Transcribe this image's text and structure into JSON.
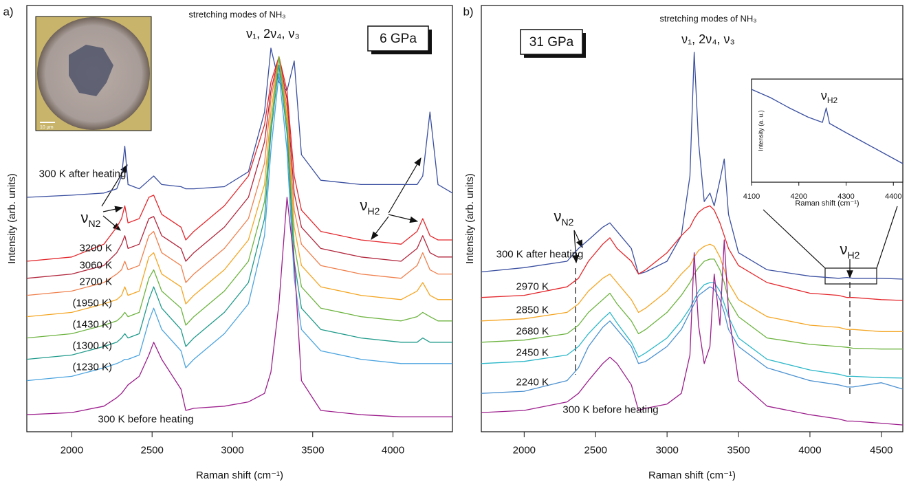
{
  "chart_data": [
    {
      "type": "line",
      "panel_label": "a)",
      "title": "stretching modes of NH₃",
      "subtitle": "ν₁, 2ν₄, ν₃",
      "pressure": "6 GPa",
      "x_label": "Raman shift (cm⁻¹)",
      "y_label": "Intensity (arb. units)",
      "inset_image_scale": "10 µm",
      "xlim": [
        1720,
        4370
      ],
      "xticks": [
        2000,
        2500,
        3000,
        3500,
        4000
      ],
      "ylim": [
        0,
        100
      ],
      "annotations": [
        {
          "text": "ν",
          "sub": "N2"
        },
        {
          "text": "ν",
          "sub": "H2"
        }
      ],
      "x": [
        1720,
        2000,
        2200,
        2280,
        2310,
        2330,
        2350,
        2420,
        2480,
        2510,
        2560,
        2680,
        2710,
        2760,
        2950,
        3100,
        3200,
        3240,
        3290,
        3340,
        3385,
        3430,
        3550,
        3800,
        4050,
        4150,
        4185,
        4230,
        4280,
        4370
      ],
      "series": [
        {
          "name": "300 K after heating",
          "color": "#3a4fa0",
          "values": [
            55,
            55.5,
            56,
            57,
            60,
            67,
            58,
            57,
            59,
            60,
            58,
            57.5,
            57,
            57,
            57.5,
            61,
            75,
            90,
            82,
            80,
            87,
            65,
            59,
            58,
            58,
            58,
            60,
            75,
            58,
            56
          ]
        },
        {
          "name": "3200 K",
          "color": "#e3262b",
          "values": [
            40,
            41,
            44,
            48,
            50,
            53,
            49,
            50,
            55,
            55.5,
            51,
            48,
            45,
            47,
            53,
            60,
            72,
            82,
            88,
            80,
            60,
            52,
            47,
            45,
            44,
            47,
            50,
            46,
            45,
            45
          ]
        },
        {
          "name": "3060 K",
          "color": "#b1263c",
          "values": [
            36,
            37,
            39,
            42,
            44,
            46,
            43,
            44,
            50,
            50.5,
            46,
            43,
            40,
            42,
            48,
            55,
            68,
            80,
            88,
            78,
            56,
            48,
            43,
            41,
            40,
            43,
            46,
            42,
            41,
            41
          ]
        },
        {
          "name": "2700 K",
          "color": "#ef7f4c",
          "values": [
            32,
            33,
            35,
            37,
            38,
            40,
            38,
            39,
            46,
            47,
            42,
            39,
            35,
            37,
            43,
            50,
            63,
            78,
            88,
            76,
            52,
            44,
            39,
            37,
            36,
            39,
            42,
            38,
            37,
            37
          ]
        },
        {
          "name": "(1950 K)",
          "color": "#f4a522",
          "values": [
            27,
            28,
            30,
            31,
            32,
            34,
            32,
            33,
            41,
            42,
            37,
            34,
            30,
            32,
            38,
            45,
            58,
            75,
            88,
            74,
            48,
            39,
            34,
            32,
            31,
            33,
            35,
            32,
            31,
            31
          ]
        },
        {
          "name": "(1430 K)",
          "color": "#6cb33f",
          "values": [
            22,
            23,
            25,
            26,
            27,
            28,
            27,
            28,
            36,
            38,
            33,
            29,
            25,
            27,
            33,
            40,
            54,
            72,
            88,
            72,
            44,
            34,
            29,
            27,
            26,
            27,
            28,
            27,
            26,
            26
          ]
        },
        {
          "name": "(1300 K)",
          "color": "#1e9a8a",
          "values": [
            17,
            18,
            20,
            21,
            22,
            23,
            22,
            23,
            31,
            34,
            29,
            24,
            20,
            22,
            28,
            35,
            50,
            70,
            86,
            70,
            40,
            29,
            24,
            22,
            21,
            21,
            22,
            21,
            21,
            21
          ]
        },
        {
          "name": "(1230 K)",
          "color": "#4aa3df",
          "values": [
            12,
            13,
            15,
            16,
            16.5,
            17,
            17,
            18,
            26,
            29,
            24,
            19,
            15,
            17,
            23,
            30,
            46,
            66,
            84,
            66,
            36,
            24,
            19,
            17,
            16,
            16,
            16,
            16,
            16,
            16
          ]
        },
        {
          "name": "300 K before heating",
          "color": "#9c1e8c",
          "values": [
            4,
            4.5,
            6,
            8,
            9,
            10,
            11,
            13,
            18,
            21,
            17,
            10,
            5,
            5.5,
            6,
            7,
            9,
            14,
            30,
            55,
            40,
            12,
            5,
            4,
            3.5,
            3.5,
            3.5,
            3.5,
            3.5,
            3.5
          ]
        }
      ]
    },
    {
      "type": "line",
      "panel_label": "b)",
      "title": "stretching modes of NH₃",
      "subtitle": "ν₁, 2ν₄, ν₃",
      "pressure": "31 GPa",
      "x_label": "Raman shift (cm⁻¹)",
      "y_label": "Intensity (arb. units)",
      "xlim": [
        1700,
        4650
      ],
      "xticks": [
        2000,
        2500,
        3000,
        3500,
        4000,
        4500
      ],
      "ylim": [
        0,
        100
      ],
      "annotations": [
        {
          "text": "ν",
          "sub": "N2"
        },
        {
          "text": "ν",
          "sub": "H2"
        }
      ],
      "x": [
        1700,
        2000,
        2300,
        2380,
        2450,
        2550,
        2600,
        2650,
        2750,
        2800,
        2850,
        3000,
        3100,
        3160,
        3190,
        3220,
        3260,
        3300,
        3330,
        3370,
        3400,
        3430,
        3500,
        3700,
        4000,
        4200,
        4260,
        4300,
        4500,
        4650
      ],
      "series": [
        {
          "name": "300 K after heating",
          "color": "#3a4fa0",
          "values": [
            37.5,
            38.5,
            40,
            43,
            45,
            48,
            49,
            47,
            43,
            37,
            37.5,
            40,
            46,
            60,
            89,
            68,
            54,
            56,
            53,
            59,
            64,
            51,
            42,
            38,
            36.5,
            36,
            36.2,
            36,
            36,
            35.8
          ]
        },
        {
          "name": "2970 K",
          "color": "#e3262b",
          "values": [
            31.5,
            32,
            34,
            36,
            40,
            44,
            45.5,
            43,
            40,
            37,
            38,
            42,
            46,
            48,
            50,
            51.5,
            52.5,
            53,
            52,
            49,
            46,
            43,
            39,
            35,
            32.5,
            32,
            31.5,
            31.5,
            31,
            30.8
          ]
        },
        {
          "name": "2850 K",
          "color": "#f4a522",
          "values": [
            26,
            26.5,
            28,
            30,
            33,
            36,
            37,
            35,
            31,
            28,
            29,
            33,
            37,
            39,
            41,
            42.5,
            43.5,
            44,
            43.5,
            41,
            38,
            35,
            31,
            27,
            25,
            24.5,
            24,
            24,
            23.5,
            23.5
          ]
        },
        {
          "name": "2680 K",
          "color": "#6cb33f",
          "values": [
            21,
            21.5,
            23,
            25,
            28,
            31,
            32.5,
            30,
            26,
            23,
            24,
            28,
            32,
            35,
            37,
            38.5,
            40,
            40.5,
            40.5,
            38,
            35,
            31,
            27,
            22,
            20.5,
            20,
            19.8,
            19.6,
            19.4,
            19.4
          ]
        },
        {
          "name": "2450 K",
          "color": "#2bb7c8",
          "values": [
            16,
            16.5,
            18,
            20,
            23,
            26.5,
            28,
            25.5,
            21,
            17.5,
            18.5,
            22,
            26,
            29,
            31,
            33,
            34.5,
            35,
            35,
            33,
            30,
            27,
            22,
            17,
            14.5,
            13.5,
            13,
            13,
            12.7,
            12.6
          ]
        },
        {
          "name": "2240 K",
          "color": "#4a90d0",
          "values": [
            9,
            9.5,
            12,
            15,
            20,
            24.5,
            26,
            24,
            20,
            16,
            16.5,
            20,
            24,
            28,
            30,
            32,
            33,
            34,
            33.5,
            31,
            28,
            24,
            20,
            15,
            12,
            11,
            10.5,
            10.5,
            11.5,
            10
          ]
        },
        {
          "name": "300 K before heating",
          "color": "#9c1e8c",
          "values": [
            4.5,
            5,
            7,
            9,
            12,
            16,
            17.5,
            16,
            11,
            5,
            5.5,
            6.5,
            9,
            18,
            42,
            25,
            16,
            20,
            37,
            25,
            45,
            28,
            12,
            6,
            4,
            3,
            2.5,
            2.5,
            2,
            1.6
          ]
        }
      ]
    },
    {
      "type": "line",
      "x_label": "Raman shift (cm⁻¹)",
      "y_label": "Intensity (a. u.)",
      "annotations": [
        {
          "text": "ν",
          "sub": "H2"
        }
      ],
      "xlim": [
        4100,
        4420
      ],
      "xticks": [
        4100,
        4200,
        4300,
        4400
      ],
      "ylim": [
        0,
        100
      ],
      "x": [
        4100,
        4140,
        4180,
        4220,
        4250,
        4258,
        4265,
        4300,
        4340,
        4380,
        4420
      ],
      "series": [
        {
          "color": "#3a4fa0",
          "values": [
            90,
            82,
            72,
            63,
            58,
            72,
            57,
            48,
            38,
            28,
            18
          ]
        }
      ]
    }
  ]
}
